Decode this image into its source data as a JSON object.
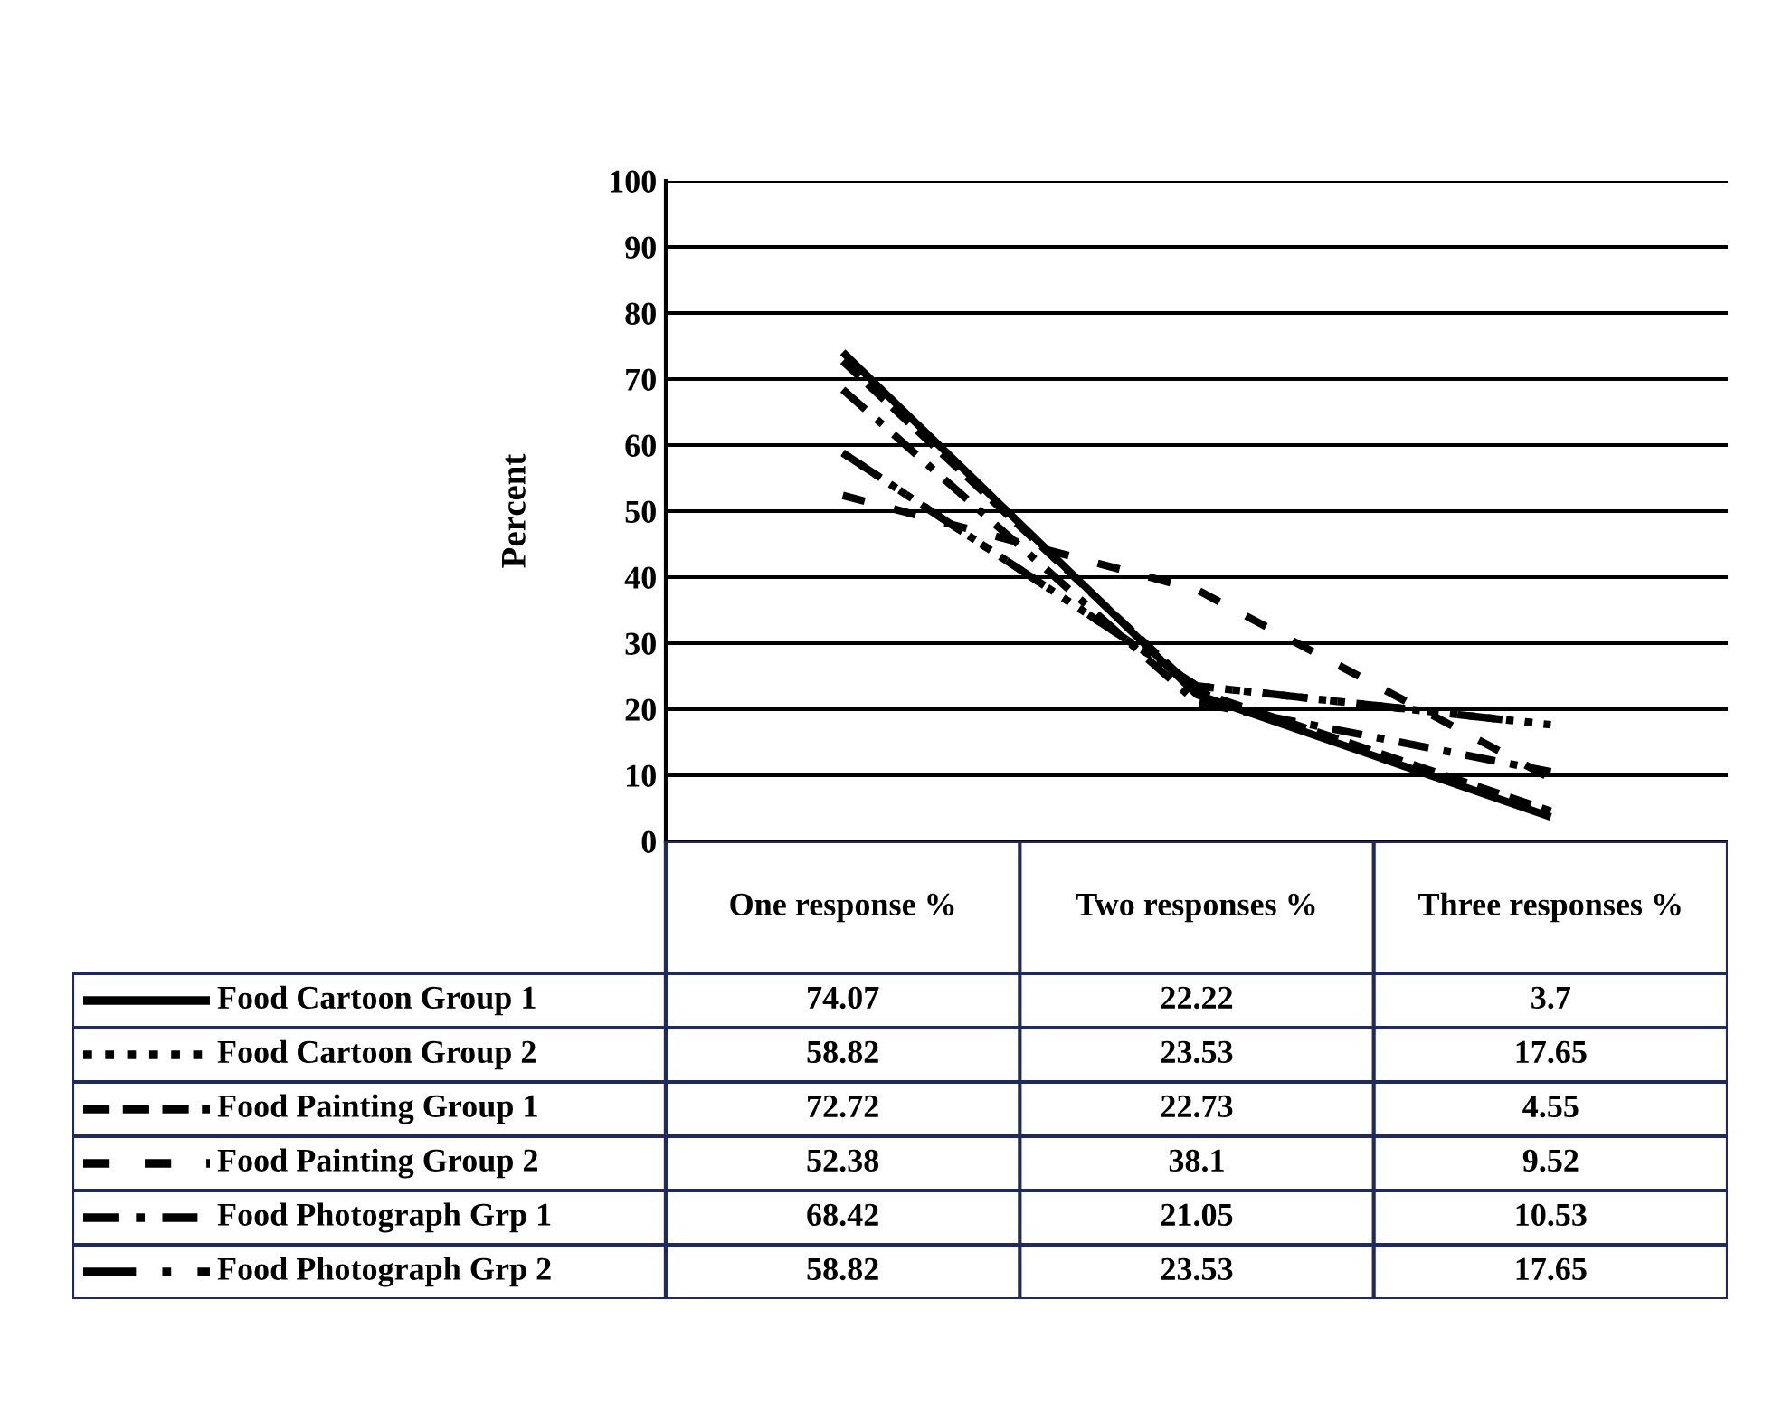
{
  "chart_data": {
    "type": "line",
    "ylabel": "Percent",
    "categories": [
      "One response %",
      "Two responses %",
      "Three responses %"
    ],
    "series": [
      {
        "name": "Food Cartoon Group 1",
        "color": "#000000",
        "line_style": "solid",
        "values": [
          74.07,
          22.22,
          3.7
        ]
      },
      {
        "name": "Food Cartoon Group 2",
        "color": "#000000",
        "line_style": "dotted",
        "values": [
          58.82,
          23.53,
          17.65
        ]
      },
      {
        "name": "Food Painting Group 1",
        "color": "#000000",
        "line_style": "dashed",
        "values": [
          72.72,
          22.73,
          4.55
        ]
      },
      {
        "name": "Food Painting Group 2",
        "color": "#000000",
        "line_style": "longdash",
        "values": [
          52.38,
          38.1,
          9.52
        ]
      },
      {
        "name": "Food Photograph Grp 1",
        "color": "#000000",
        "line_style": "dashdot",
        "values": [
          68.42,
          21.05,
          10.53
        ]
      },
      {
        "name": "Food Photograph Grp 2",
        "color": "#000000",
        "line_style": "longdashdot",
        "values": [
          58.82,
          23.53,
          17.65
        ]
      }
    ],
    "ylim": [
      0,
      100
    ],
    "yticks": [
      0,
      10,
      20,
      30,
      40,
      50,
      60,
      70,
      80,
      90,
      100
    ],
    "grid": "y",
    "legend": "bottom",
    "marker": "none",
    "data_labels": true
  }
}
